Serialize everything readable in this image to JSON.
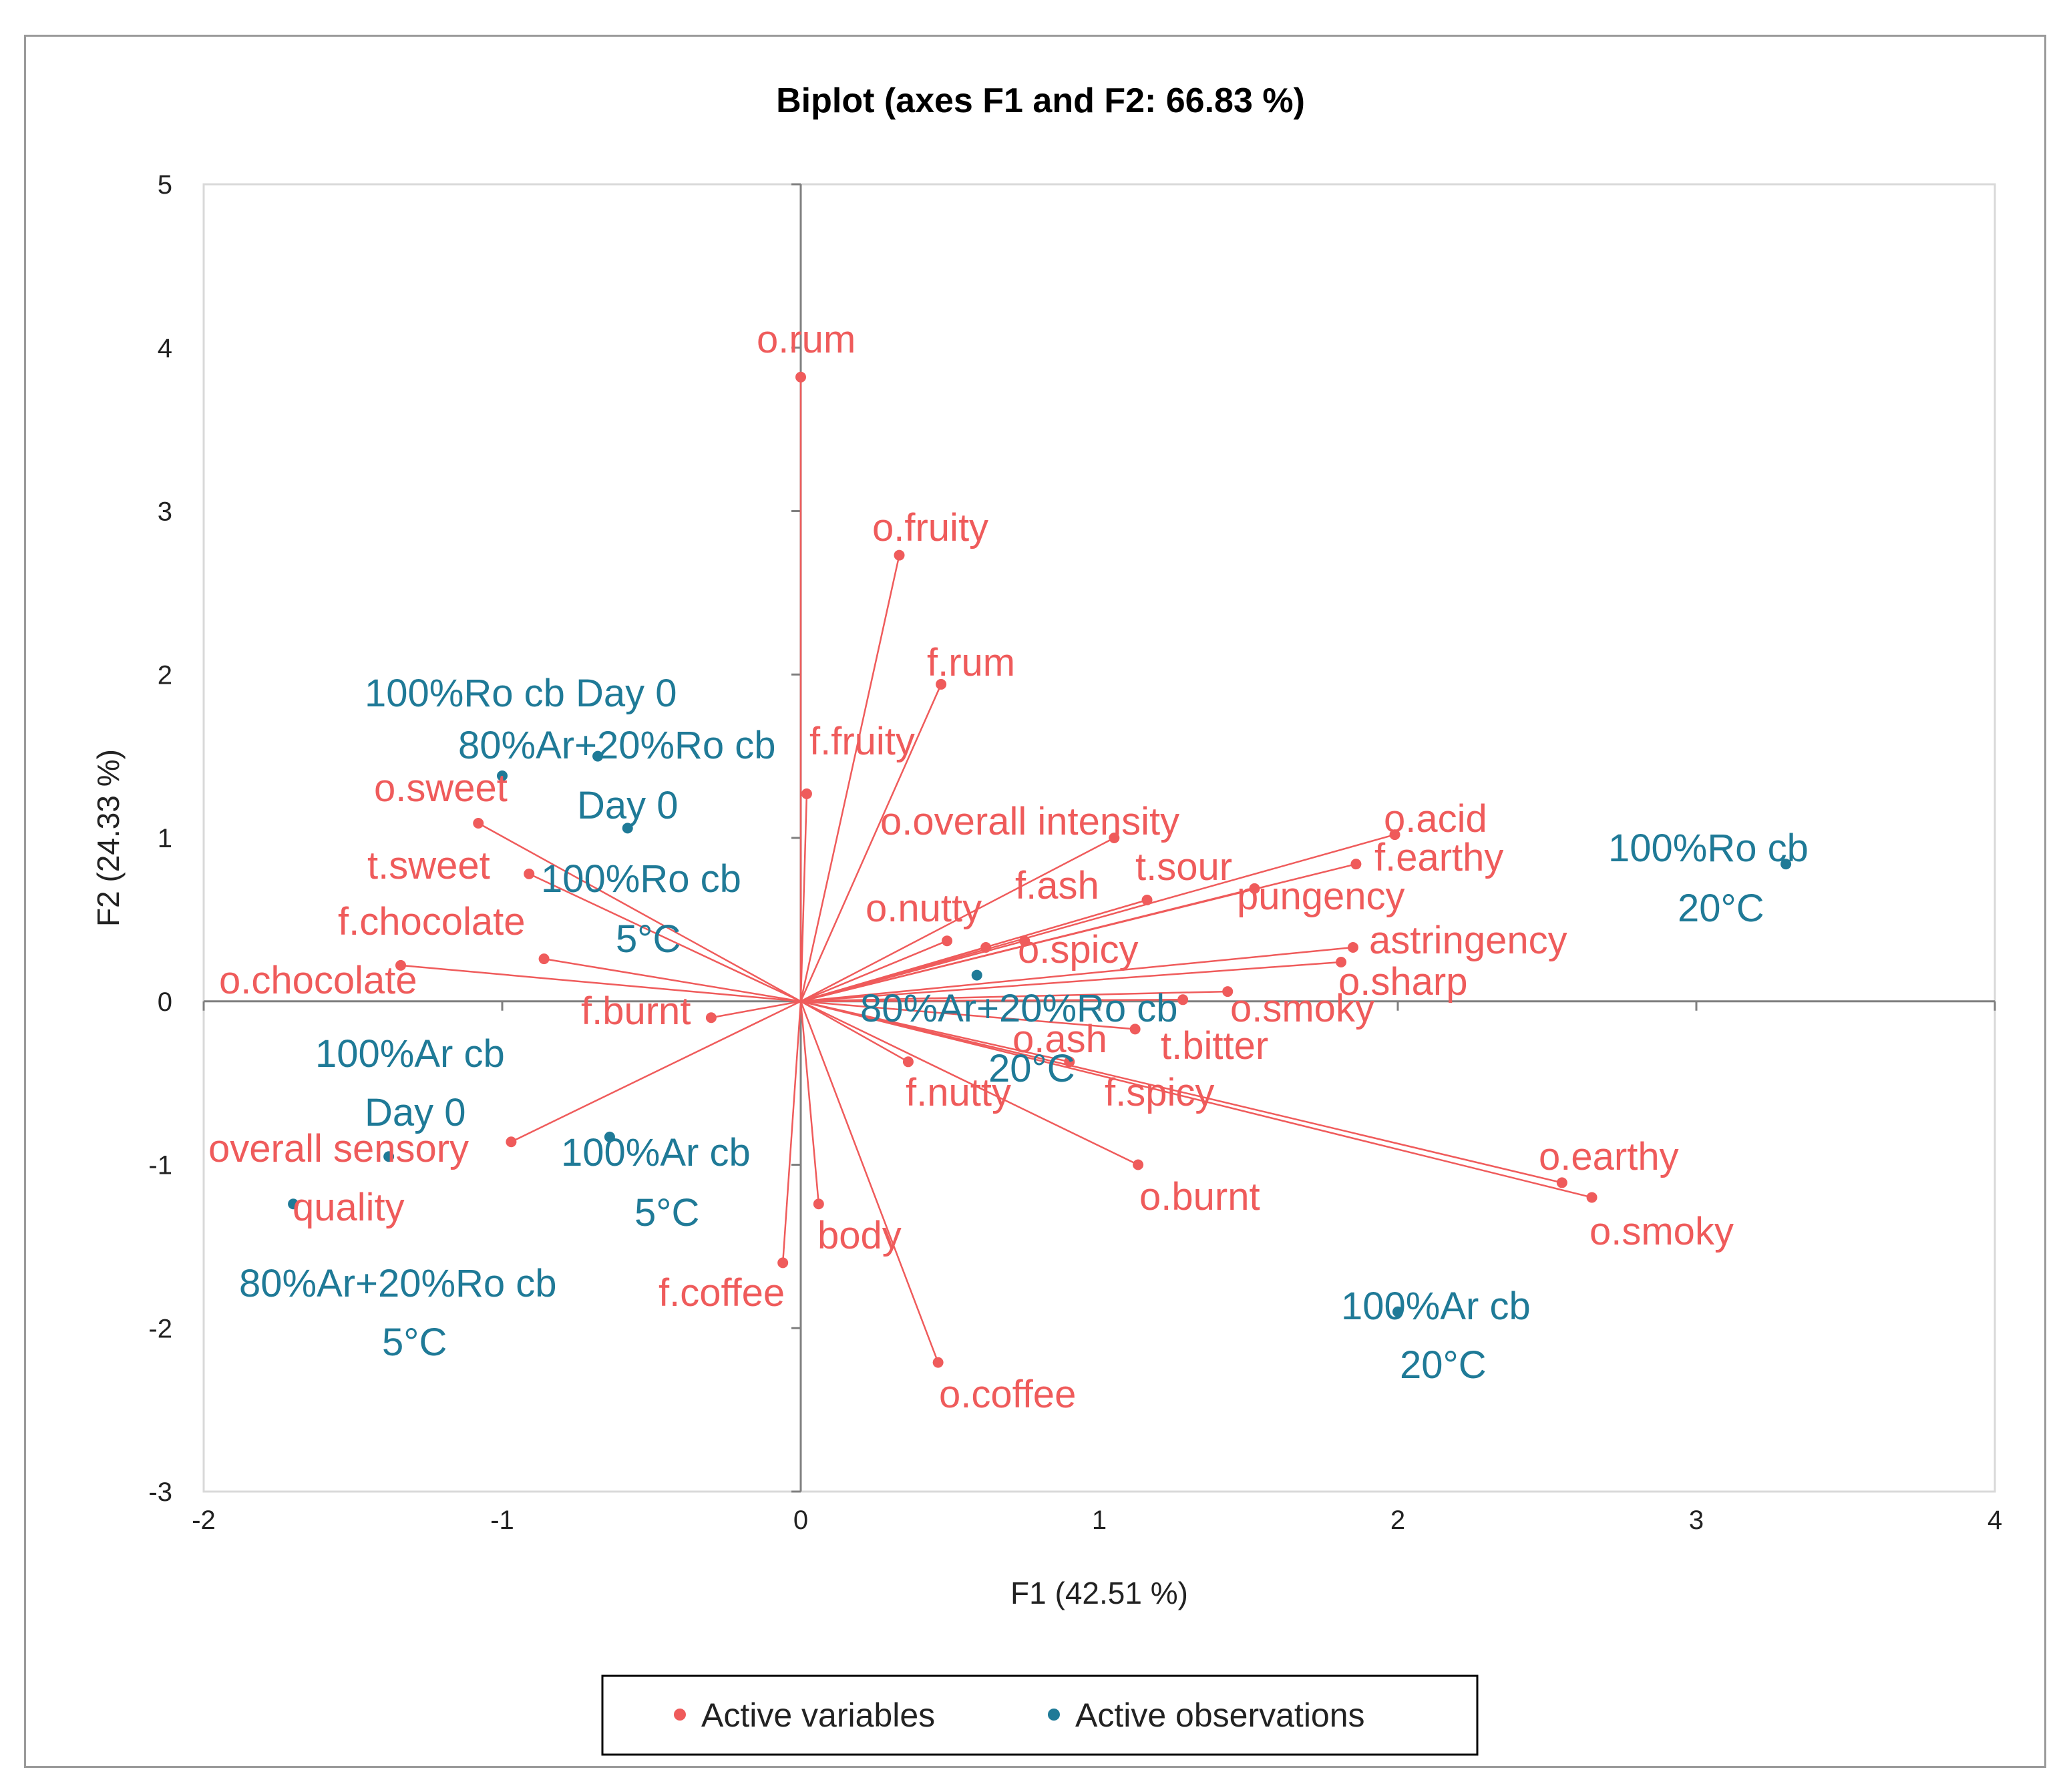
{
  "chart_data": {
    "type": "scatter",
    "subtype": "biplot",
    "title": "Biplot (axes F1 and F2: 66.83 %)",
    "xlabel": "F1 (42.51 %)",
    "ylabel": "F2 (24.33 %)",
    "xlim": [
      -2,
      4
    ],
    "ylim": [
      -3,
      5
    ],
    "xticks": [
      "-2",
      "-1",
      "0",
      "1",
      "2",
      "3",
      "4"
    ],
    "yticks": [
      "-3",
      "-2",
      "-1",
      "0",
      "1",
      "2",
      "3",
      "4",
      "5"
    ],
    "legend": [
      "Active variables",
      "Active observations"
    ],
    "colors": {
      "variables": "#ef5b5b",
      "observations": "#1f7a97",
      "axis": "#7f7f7f"
    },
    "variables": [
      {
        "name": "o.rum",
        "x": 0.0,
        "y": 3.82
      },
      {
        "name": "o.fruity",
        "x": 0.33,
        "y": 2.73
      },
      {
        "name": "f.rum",
        "x": 0.47,
        "y": 1.94
      },
      {
        "name": "f.fruity",
        "x": 0.02,
        "y": 1.27
      },
      {
        "name": "o.overall intensity",
        "x": 1.05,
        "y": 1.0
      },
      {
        "name": "o.acid",
        "x": 1.99,
        "y": 1.02
      },
      {
        "name": "f.earthy",
        "x": 1.86,
        "y": 0.84
      },
      {
        "name": "t.sour",
        "x": 1.16,
        "y": 0.62
      },
      {
        "name": "pungency",
        "x": 1.52,
        "y": 0.69
      },
      {
        "name": "f.ash",
        "x": 0.75,
        "y": 0.37
      },
      {
        "name": "o.nutty",
        "x": 0.49,
        "y": 0.37
      },
      {
        "name": "o.spicy",
        "x": 0.62,
        "y": 0.33
      },
      {
        "name": "astringency",
        "x": 1.85,
        "y": 0.33
      },
      {
        "name": "o.sharp",
        "x": 1.81,
        "y": 0.24
      },
      {
        "name": "o.smoky",
        "x": 1.43,
        "y": 0.06
      },
      {
        "name": "t.bitter",
        "x": 1.28,
        "y": 0.01
      },
      {
        "name": "o.ash",
        "x": 1.12,
        "y": -0.17
      },
      {
        "name": "f.spicy",
        "x": 0.9,
        "y": -0.37
      },
      {
        "name": "f.nutty",
        "x": 0.36,
        "y": -0.37
      },
      {
        "name": "o.earthy",
        "x": 2.55,
        "y": -1.11
      },
      {
        "name": "o.smoky",
        "x": 2.65,
        "y": -1.2
      },
      {
        "name": "o.burnt",
        "x": 1.13,
        "y": -1.0
      },
      {
        "name": "body",
        "x": 0.06,
        "y": -1.24
      },
      {
        "name": "f.coffee",
        "x": -0.06,
        "y": -1.6
      },
      {
        "name": "o.coffee",
        "x": 0.46,
        "y": -2.21
      },
      {
        "name": "o.sweet",
        "x": -1.08,
        "y": 1.09
      },
      {
        "name": "t.sweet",
        "x": -0.91,
        "y": 0.78
      },
      {
        "name": "f.chocolate",
        "x": -0.86,
        "y": 0.26
      },
      {
        "name": "o.chocolate",
        "x": -1.34,
        "y": 0.22
      },
      {
        "name": "f.burnt",
        "x": -0.3,
        "y": -0.1
      },
      {
        "name": "overall sensory quality",
        "x": -0.97,
        "y": -0.86
      }
    ],
    "observations": [
      {
        "name": "100%Ro cb Day 0",
        "x": -1.0,
        "y": 1.38
      },
      {
        "name": "80%Ar+20%Ro cb Day 0",
        "x": -0.68,
        "y": 1.5
      },
      {
        "name": "100%Ro cb 5°C",
        "x": -0.58,
        "y": 1.06
      },
      {
        "name": "100%Ro cb 20°C",
        "x": 3.3,
        "y": 0.84
      },
      {
        "name": "80%Ar+20%Ro cb 20°C",
        "x": 0.59,
        "y": 0.16
      },
      {
        "name": "100%Ar cb Day 0",
        "x": -1.38,
        "y": -0.95
      },
      {
        "name": "100%Ar cb 5°C",
        "x": -0.64,
        "y": -0.83
      },
      {
        "name": "80%Ar+20%Ro cb 5°C",
        "x": -1.7,
        "y": -1.24
      },
      {
        "name": "100%Ar cb 20°C",
        "x": 2.0,
        "y": -1.9
      }
    ],
    "labels": {
      "o_rum": "o.rum",
      "o_fruity": "o.fruity",
      "f_rum": "f.rum",
      "f_fruity": "f.fruity",
      "o_overall_intensity": "o.overall intensity",
      "o_acid": "o.acid",
      "f_earthy": "f.earthy",
      "t_sour": "t.sour",
      "pungency": "pungency",
      "f_ash": "f.ash",
      "o_nutty": "o.nutty",
      "o_spicy": "o.spicy",
      "astringency": "astringency",
      "o_sharp": "o.sharp",
      "o_smoky_upper": "o.smoky",
      "t_bitter": "t.bitter",
      "o_ash": "o.ash",
      "f_spicy": "f.spicy",
      "f_nutty": "f.nutty",
      "o_earthy": "o.earthy",
      "o_smoky_lower": "o.smoky",
      "o_burnt": "o.burnt",
      "body": "body",
      "f_coffee": "f.coffee",
      "o_coffee": "o.coffee",
      "o_sweet": "o.sweet",
      "t_sweet": "t.sweet",
      "f_chocolate": "f.chocolate",
      "o_chocolate": "o.chocolate",
      "f_burnt": "f.burnt",
      "overall_sensory_l1": "overall sensory",
      "overall_sensory_l2": "quality",
      "obs_ro_day0": "100%Ro cb Day 0",
      "obs_mix_day0_l1": "80%Ar+20%Ro cb",
      "obs_mix_day0_l2": "Day 0",
      "obs_ro_5_l1": "100%Ro cb",
      "obs_ro_5_l2": "5°C",
      "obs_ro_20_l1": "100%Ro cb",
      "obs_ro_20_l2": "20°C",
      "obs_mix_20_l1": "80%Ar+20%Ro cb",
      "obs_mix_20_l2": "20°C",
      "obs_ar_day0_l1": "100%Ar cb",
      "obs_ar_day0_l2": "Day 0",
      "obs_ar_5_l1": "100%Ar cb",
      "obs_ar_5_l2": "5°C",
      "obs_mix_5_l1": "80%Ar+20%Ro cb",
      "obs_mix_5_l2": "5°C",
      "obs_ar_20_l1": "100%Ar cb",
      "obs_ar_20_l2": "20°C"
    }
  }
}
